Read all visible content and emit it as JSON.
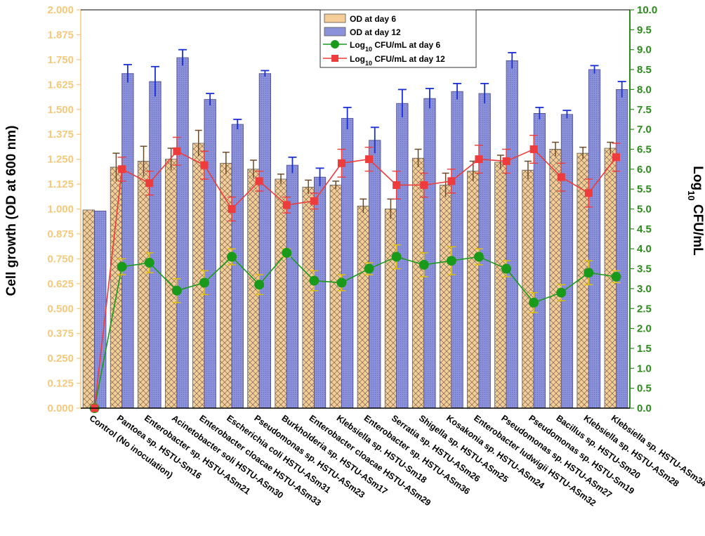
{
  "chart_data": {
    "type": "bar",
    "y_left_label": "Cell growth (OD at 600 nm)",
    "y_right_label": "Log10 CFU/mL",
    "y_right_label_parts": {
      "main": "Log",
      "sub": "10",
      "rest": " CFU/mL"
    },
    "y_left_range": [
      0,
      2
    ],
    "y_right_range": [
      0,
      10
    ],
    "y_left_ticks": [
      "0.000",
      "0.125",
      "0.250",
      "0.375",
      "0.500",
      "0.625",
      "0.750",
      "0.875",
      "1.000",
      "1.125",
      "1.250",
      "1.375",
      "1.500",
      "1.625",
      "1.750",
      "1.875",
      "2.000"
    ],
    "y_right_ticks": [
      "0.0",
      "0.5",
      "1.0",
      "1.5",
      "2.0",
      "2.5",
      "3.0",
      "3.5",
      "4.0",
      "4.5",
      "5.0",
      "5.5",
      "6.0",
      "6.5",
      "7.0",
      "7.5",
      "8.0",
      "8.5",
      "9.0",
      "9.5",
      "10.0"
    ],
    "categories": [
      "Control (No inoculation)",
      "Pantoea sp. HSTU-Sm16",
      "Enterobacter sp. HSTU-ASm21",
      "Acinetobacter soli HSTU-ASm30",
      "Enterobacter cloacae HSTU-ASm33",
      "Escherichia coli HSTU-ASm31",
      "Pseudomonas sp. HSTU-ASm23",
      "Burkholderia sp. HSTU-ASm17",
      "Enterobacter cloacae HSTU-ASm29",
      "Klebsiella sp. HSTU-Sm18",
      "Enterobacter sp. HSTU-ASm36",
      "Serratia sp. HSTU-ASm26",
      "Shigella sp. HSTU-ASm25",
      "Kosakonia sp. HSTU-ASm24",
      "Enterobacter ludwigii HSTU-ASm32",
      "Pseudomonas sp. HSTU-ASm27",
      "Pseudomonas sp. HSTU-Sm19",
      "Bacillus sp. HSTU-Sm20",
      "Klebsiella sp. HSTU-ASm28",
      "Klebsiella sp. HSTU-ASm34"
    ],
    "series": [
      {
        "name": "OD at day 6",
        "kind": "bar",
        "axis": "left",
        "color": "#f5cd97",
        "values": [
          0.995,
          1.21,
          1.24,
          1.25,
          1.33,
          1.23,
          1.2,
          1.15,
          1.11,
          1.12,
          1.015,
          1.0,
          1.255,
          1.12,
          1.19,
          1.235,
          1.195,
          1.3,
          1.28,
          1.305
        ],
        "errors": [
          0,
          0.07,
          0.075,
          0.055,
          0.065,
          0.055,
          0.045,
          0.025,
          0.035,
          0.02,
          0.035,
          0.05,
          0.045,
          0.06,
          0.05,
          0.035,
          0.045,
          0.035,
          0.03,
          0.03
        ]
      },
      {
        "name": "OD at day 12",
        "kind": "bar",
        "axis": "left",
        "color": "#8c92d9",
        "values": [
          0.99,
          1.68,
          1.64,
          1.76,
          1.55,
          1.425,
          1.68,
          1.22,
          1.16,
          1.455,
          1.345,
          1.53,
          1.555,
          1.59,
          1.58,
          1.745,
          1.48,
          1.475,
          1.7,
          1.6
        ],
        "errors": [
          0,
          0.045,
          0.075,
          0.04,
          0.03,
          0.025,
          0.015,
          0.04,
          0.045,
          0.055,
          0.065,
          0.07,
          0.05,
          0.04,
          0.05,
          0.04,
          0.03,
          0.02,
          0.02,
          0.04
        ]
      },
      {
        "name": "Log10 CFU/mL at day 6",
        "label_parts": {
          "main": "Log",
          "sub": "10",
          "rest": " CFU/mL at day 6"
        },
        "kind": "line",
        "axis": "right",
        "color": "#1a9a1a",
        "values": [
          0.0,
          3.55,
          3.65,
          2.95,
          3.15,
          3.8,
          3.1,
          3.9,
          3.2,
          3.15,
          3.5,
          3.8,
          3.6,
          3.7,
          3.8,
          3.5,
          2.65,
          2.9,
          3.4,
          3.3
        ],
        "errors": [
          0,
          0.2,
          0.25,
          0.3,
          0.3,
          0.2,
          0.25,
          0.1,
          0.25,
          0.2,
          0.15,
          0.3,
          0.3,
          0.35,
          0.2,
          0.2,
          0.25,
          0.2,
          0.3,
          0.15
        ]
      },
      {
        "name": "Log10 CFU/mL at day 12",
        "label_parts": {
          "main": "Log",
          "sub": "10",
          "rest": " CFU/mL at day 12"
        },
        "kind": "line",
        "axis": "right",
        "color": "#ee3b3b",
        "values": [
          0.0,
          6.0,
          5.65,
          6.45,
          6.1,
          5.0,
          5.7,
          5.1,
          5.2,
          6.15,
          6.25,
          5.6,
          5.6,
          5.7,
          6.25,
          6.2,
          6.5,
          5.8,
          5.4,
          6.3
        ],
        "errors": [
          0,
          0.3,
          0.3,
          0.35,
          0.35,
          0.3,
          0.25,
          0.2,
          0.2,
          0.35,
          0.3,
          0.35,
          0.3,
          0.3,
          0.35,
          0.3,
          0.35,
          0.35,
          0.35,
          0.35
        ]
      }
    ],
    "legend_position": "top-center"
  }
}
